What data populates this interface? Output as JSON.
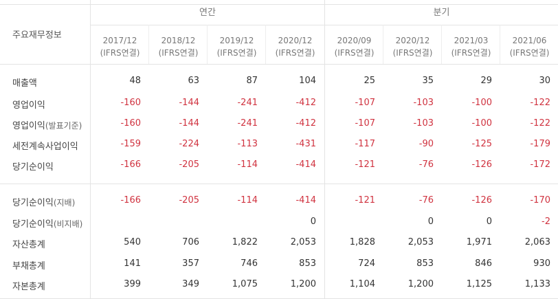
{
  "table": {
    "corner_label": "주요재무정보",
    "groups": [
      {
        "label": "연간"
      },
      {
        "label": "분기"
      }
    ],
    "columns": [
      {
        "period": "2017/12",
        "basis": "(IFRS연결)"
      },
      {
        "period": "2018/12",
        "basis": "(IFRS연결)"
      },
      {
        "period": "2019/12",
        "basis": "(IFRS연결)"
      },
      {
        "period": "2020/12",
        "basis": "(IFRS연결)"
      },
      {
        "period": "2020/09",
        "basis": "(IFRS연결)"
      },
      {
        "period": "2020/12",
        "basis": "(IFRS연결)"
      },
      {
        "period": "2021/03",
        "basis": "(IFRS연결)"
      },
      {
        "period": "2021/06",
        "basis": "(IFRS연결)"
      }
    ],
    "rows": [
      {
        "label": "매출액",
        "sub": "",
        "values": [
          "48",
          "63",
          "87",
          "104",
          "25",
          "35",
          "29",
          "30"
        ]
      },
      {
        "label": "영업이익",
        "sub": "",
        "values": [
          "-160",
          "-144",
          "-241",
          "-412",
          "-107",
          "-103",
          "-100",
          "-122"
        ]
      },
      {
        "label": "영업이익",
        "sub": "(발표기준)",
        "values": [
          "-160",
          "-144",
          "-241",
          "-412",
          "-107",
          "-103",
          "-100",
          "-122"
        ]
      },
      {
        "label": "세전계속사업이익",
        "sub": "",
        "values": [
          "-159",
          "-224",
          "-113",
          "-431",
          "-117",
          "-90",
          "-125",
          "-179"
        ]
      },
      {
        "label": "당기순이익",
        "sub": "",
        "values": [
          "-166",
          "-205",
          "-114",
          "-414",
          "-121",
          "-76",
          "-126",
          "-172"
        ]
      },
      {
        "label": "당기순이익",
        "sub": "(지배)",
        "values": [
          "-166",
          "-205",
          "-114",
          "-414",
          "-121",
          "-76",
          "-126",
          "-170"
        ]
      },
      {
        "label": "당기순이익",
        "sub": "(비지배)",
        "values": [
          "",
          "",
          "",
          "0",
          "",
          "0",
          "0",
          "-2"
        ]
      },
      {
        "label": "자산총계",
        "sub": "",
        "values": [
          "540",
          "706",
          "1,822",
          "2,053",
          "1,828",
          "2,053",
          "1,971",
          "2,063"
        ]
      },
      {
        "label": "부채총계",
        "sub": "",
        "values": [
          "141",
          "357",
          "746",
          "853",
          "724",
          "853",
          "846",
          "930"
        ]
      },
      {
        "label": "자본총계",
        "sub": "",
        "values": [
          "399",
          "349",
          "1,075",
          "1,200",
          "1,104",
          "1,200",
          "1,125",
          "1,133"
        ]
      }
    ]
  },
  "colors": {
    "negative": "#d0323f",
    "text": "#333333",
    "grid": "#e3e3e3"
  }
}
